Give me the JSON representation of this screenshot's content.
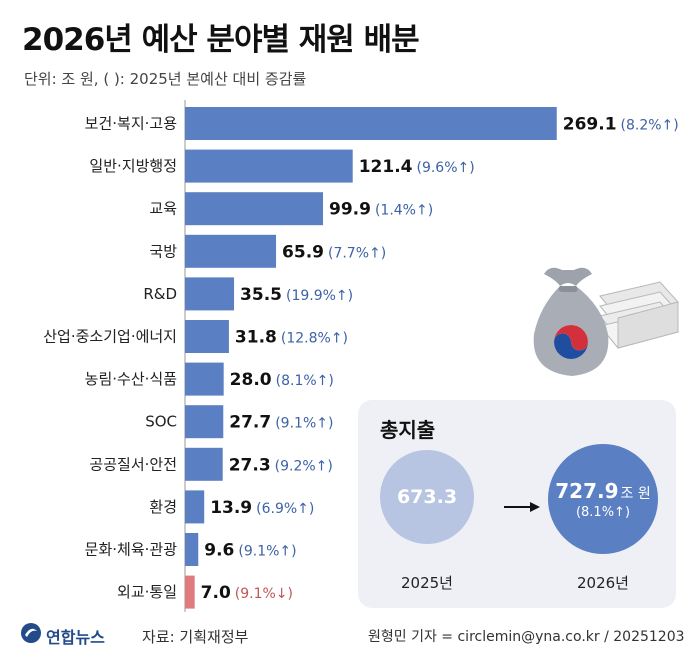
{
  "header": {
    "title": "2026년 예산 분야별 재원 배분",
    "unit_note": "단위: 조 원, (  ): 2025년 본예산 대비 증감률"
  },
  "chart_data": {
    "type": "bar",
    "orientation": "horizontal",
    "title": "2026년 예산 분야별 재원 배분",
    "unit": "조 원",
    "categories": [
      "보건·복지·고용",
      "일반·지방행정",
      "교육",
      "국방",
      "R&D",
      "산업·중소기업·에너지",
      "농림·수산·식품",
      "SOC",
      "공공질서·안전",
      "환경",
      "문화·체육·관광",
      "외교·통일"
    ],
    "values": [
      269.1,
      121.4,
      99.9,
      65.9,
      35.5,
      31.8,
      28.0,
      27.7,
      27.3,
      13.9,
      9.6,
      7.0
    ],
    "value_labels": [
      "269.1",
      "121.4",
      "99.9",
      "65.9",
      "35.5",
      "31.8",
      "28.0",
      "27.7",
      "27.3",
      "13.9",
      "9.6",
      "7.0"
    ],
    "change_labels": [
      "(8.2%↑)",
      "(9.6%↑)",
      "(1.4%↑)",
      "(7.7%↑)",
      "(19.9%↑)",
      "(12.8%↑)",
      "(8.1%↑)",
      "(9.1%↑)",
      "(9.2%↑)",
      "(6.9%↑)",
      "(9.1%↑)",
      "(9.1%↓)"
    ],
    "change_pct": [
      8.2,
      9.6,
      1.4,
      7.7,
      19.9,
      12.8,
      8.1,
      9.1,
      9.2,
      6.9,
      9.1,
      -9.1
    ],
    "xlim": [
      0,
      270
    ],
    "colors": {
      "increase": "#5b7fc3",
      "decrease": "#e07a7e",
      "increase_text": "#3d62a6",
      "decrease_text": "#c0565a"
    }
  },
  "total": {
    "title": "총지출",
    "prev_value": "673.3",
    "prev_year": "2025년",
    "new_value": "727.9",
    "new_unit": "조 원",
    "new_change": "(8.1%↑)",
    "new_year": "2026년"
  },
  "footer": {
    "logo_text": "연합뉴스",
    "source": "자료: 기획재정부",
    "credit": "원형민 기자 = circlemin@yna.co.kr / 20251203"
  }
}
